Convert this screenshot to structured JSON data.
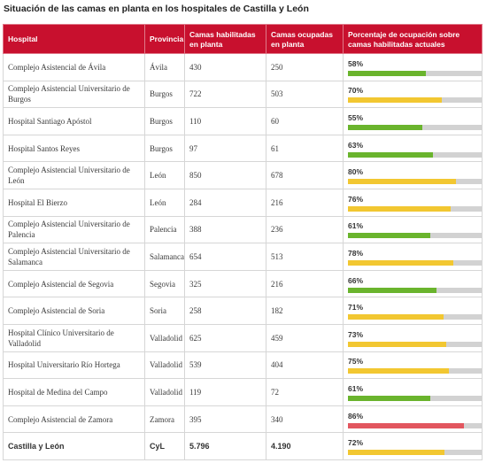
{
  "title": "Situación de las camas en planta en los hospitales de Castilla y León",
  "colors": {
    "header_bg": "#c8102e",
    "bar_track": "#d2d2d2",
    "bar_low": "#6ab42d",
    "bar_medium": "#f2c731",
    "bar_high": "#e2565f"
  },
  "table": {
    "headers": {
      "hospital": "Hospital",
      "provincia": "Provincia",
      "habilitadas": "Camas habilitadas en planta",
      "ocupadas": "Camas ocupadas en planta",
      "porcentaje": "Porcentaje de ocupación sobre camas habilitadas actuales"
    },
    "rows": [
      {
        "hospital": "Complejo Asistencial de Ávila",
        "provincia": "Ávila",
        "habilitadas": "430",
        "ocupadas": "250",
        "porcentaje": "58%",
        "pct": 58,
        "level": "low"
      },
      {
        "hospital": "Complejo Asistencial Universitario de Burgos",
        "provincia": "Burgos",
        "habilitadas": "722",
        "ocupadas": "503",
        "porcentaje": "70%",
        "pct": 70,
        "level": "medium"
      },
      {
        "hospital": "Hospital Santiago Apóstol",
        "provincia": "Burgos",
        "habilitadas": "110",
        "ocupadas": "60",
        "porcentaje": "55%",
        "pct": 55,
        "level": "low"
      },
      {
        "hospital": "Hospital Santos Reyes",
        "provincia": "Burgos",
        "habilitadas": "97",
        "ocupadas": "61",
        "porcentaje": "63%",
        "pct": 63,
        "level": "low"
      },
      {
        "hospital": "Complejo Asistencial Universitario de León",
        "provincia": "León",
        "habilitadas": "850",
        "ocupadas": "678",
        "porcentaje": "80%",
        "pct": 80,
        "level": "medium"
      },
      {
        "hospital": "Hospital El Bierzo",
        "provincia": "León",
        "habilitadas": "284",
        "ocupadas": "216",
        "porcentaje": "76%",
        "pct": 76,
        "level": "medium"
      },
      {
        "hospital": "Complejo Asistencial Universitario de Palencia",
        "provincia": "Palencia",
        "habilitadas": "388",
        "ocupadas": "236",
        "porcentaje": "61%",
        "pct": 61,
        "level": "low"
      },
      {
        "hospital": "Complejo Asistencial Universitario de Salamanca",
        "provincia": "Salamanca",
        "habilitadas": "654",
        "ocupadas": "513",
        "porcentaje": "78%",
        "pct": 78,
        "level": "medium"
      },
      {
        "hospital": "Complejo Asistencial de Segovia",
        "provincia": "Segovia",
        "habilitadas": "325",
        "ocupadas": "216",
        "porcentaje": "66%",
        "pct": 66,
        "level": "low"
      },
      {
        "hospital": "Complejo Asistencial de Soria",
        "provincia": "Soria",
        "habilitadas": "258",
        "ocupadas": "182",
        "porcentaje": "71%",
        "pct": 71,
        "level": "medium"
      },
      {
        "hospital": "Hospital Clínico Universitario de Valladolid",
        "provincia": "Valladolid",
        "habilitadas": "625",
        "ocupadas": "459",
        "porcentaje": "73%",
        "pct": 73,
        "level": "medium"
      },
      {
        "hospital": "Hospital Universitario Río Hortega",
        "provincia": "Valladolid",
        "habilitadas": "539",
        "ocupadas": "404",
        "porcentaje": "75%",
        "pct": 75,
        "level": "medium"
      },
      {
        "hospital": "Hospital de Medina del Campo",
        "provincia": "Valladolid",
        "habilitadas": "119",
        "ocupadas": "72",
        "porcentaje": "61%",
        "pct": 61,
        "level": "low"
      },
      {
        "hospital": "Complejo Asistencial de Zamora",
        "provincia": "Zamora",
        "habilitadas": "395",
        "ocupadas": "340",
        "porcentaje": "86%",
        "pct": 86,
        "level": "high"
      }
    ],
    "total": {
      "hospital": "Castilla y León",
      "provincia": "CyL",
      "habilitadas": "5.796",
      "ocupadas": "4.190",
      "porcentaje": "72%",
      "pct": 72,
      "level": "medium"
    }
  }
}
